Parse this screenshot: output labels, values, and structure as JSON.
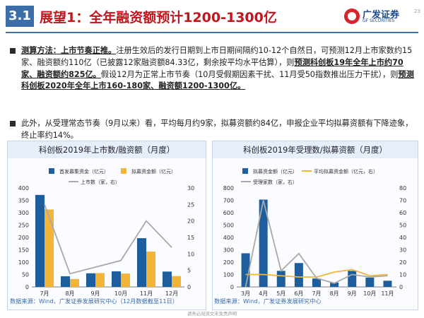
{
  "header": {
    "section": "3.1",
    "title": "展望1：全年融资额预计1200-1300亿",
    "logo_cn": "广发证券",
    "logo_en": "GF SECURITIES",
    "page": "23"
  },
  "para1": {
    "s1": "测算方法：上市节奏正推。",
    "s2": "注册生效后的发行日期到上市日期间隔约10-12个自然日，可预测12月上市家数约15家、融资额约110亿（已披露12家融资额84.33亿，剩余按平均水平估算），则",
    "s3": "预测科创板19年全年上市约70家、融资额约825亿。",
    "s4": "假设12月为正常上市节奏（10月受假期因素干扰、11月受50指数推出压力干扰），则",
    "s5": "预测科创板2020年全年上市160-180家、融资额1200-1300亿。"
  },
  "para2": {
    "text": "此外，从受理常态节奏（9月以来）看，平均每月约9家，拟募资额约84亿，申报企业平均拟募资额有下降迹象，终止率约14%。"
  },
  "sources": {
    "left": "数据来源：Wind，广发证券发展研究中心（12月数据截至11日）",
    "right": "数据来源：Wind，广发证券发展研究中心"
  },
  "footer": "请务必阅读文末免责声明",
  "colors": {
    "bar_primary": "#1f5e9c",
    "bar_secondary": "#f2b53a",
    "line": "#a9a9a9",
    "title_red": "#c0171e"
  },
  "chart_data": [
    {
      "type": "bar",
      "title": "科创板2019年上市数/融资额（月度）",
      "categories": [
        "7月",
        "8月",
        "9月",
        "10月",
        "11月",
        "12月"
      ],
      "series": [
        {
          "name": "首发募集资金（亿元）",
          "type": "bar",
          "axis": "left",
          "values": [
            372,
            43,
            55,
            63,
            197,
            62
          ]
        },
        {
          "name": "拟募资金额（亿元）",
          "type": "bar",
          "axis": "left",
          "values": [
            313,
            32,
            56,
            54,
            143,
            44
          ]
        },
        {
          "name": "上市数（家，右）",
          "type": "line",
          "axis": "right",
          "values": [
            25,
            4,
            6,
            8,
            20,
            12
          ]
        }
      ],
      "y_left": {
        "min": 0,
        "max": 400,
        "ticks": [
          0,
          50,
          100,
          150,
          200,
          250,
          300,
          350,
          400
        ]
      },
      "y_right": {
        "min": 0,
        "max": 30,
        "ticks": [
          0,
          5,
          10,
          15,
          20,
          25,
          30
        ]
      },
      "grid": false,
      "legend": "top"
    },
    {
      "type": "bar",
      "title": "科创板2019年受理数/拟募资额（月度）",
      "categories": [
        "3月",
        "4月",
        "5月",
        "6月",
        "7月",
        "8月",
        "9月",
        "10月",
        "11月"
      ],
      "series": [
        {
          "name": "拟募资金额（亿元）",
          "type": "bar",
          "axis": "left",
          "values": [
            272,
            706,
            130,
            193,
            68,
            35,
            130,
            75,
            50
          ]
        },
        {
          "name": "平均拟募资金额（亿元，右）",
          "type": "line",
          "axis": "right",
          "values": [
            10,
            10,
            9,
            8,
            8,
            12,
            14,
            9,
            10
          ]
        },
        {
          "name": "受理家数（家，右）",
          "type": "line",
          "axis": "right",
          "values": [
            0,
            70,
            13,
            27,
            7,
            3,
            10,
            8,
            9
          ]
        }
      ],
      "y_left": {
        "min": 0,
        "max": 800,
        "ticks": [
          0,
          100,
          200,
          300,
          400,
          500,
          600,
          700,
          800
        ]
      },
      "y_right": {
        "min": 0,
        "max": 80,
        "ticks": [
          0,
          10,
          20,
          30,
          40,
          50,
          60,
          70,
          80
        ]
      },
      "grid": false,
      "legend": "top"
    }
  ]
}
